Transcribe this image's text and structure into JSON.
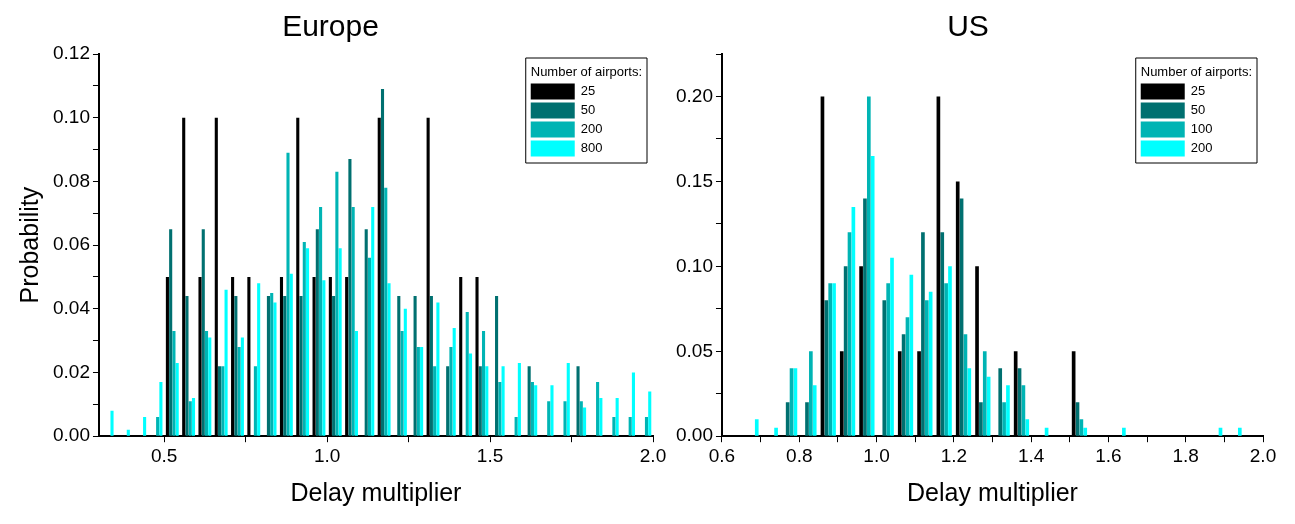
{
  "chart_data": [
    {
      "type": "bar",
      "title": "Europe",
      "xlabel": "Delay multiplier",
      "ylabel": "Probability",
      "legend_title": "Number of airports:",
      "legend": "top right",
      "x": [
        0.325,
        0.375,
        0.425,
        0.475,
        0.525,
        0.575,
        0.625,
        0.675,
        0.725,
        0.775,
        0.825,
        0.875,
        0.925,
        0.975,
        1.025,
        1.075,
        1.125,
        1.175,
        1.225,
        1.275,
        1.325,
        1.375,
        1.425,
        1.475,
        1.525,
        1.575,
        1.625,
        1.675,
        1.725,
        1.775,
        1.825,
        1.875,
        1.925,
        1.975
      ],
      "series": [
        {
          "name": "25",
          "color": "#000000",
          "values": [
            0,
            0,
            0,
            0,
            0.05,
            0.1,
            0.05,
            0.1,
            0.05,
            0.05,
            0,
            0.05,
            0.1,
            0.05,
            0.05,
            0.05,
            0,
            0.1,
            0,
            0,
            0.1,
            0,
            0.05,
            0.05,
            0,
            0,
            0,
            0,
            0,
            0,
            0,
            0,
            0,
            0
          ]
        },
        {
          "name": "50",
          "color": "#007070",
          "values": [
            0,
            0,
            0,
            0,
            0.065,
            0.044,
            0.065,
            0.022,
            0.044,
            0,
            0.044,
            0.044,
            0.044,
            0.065,
            0.044,
            0.087,
            0.065,
            0.109,
            0.044,
            0.044,
            0.044,
            0.022,
            0,
            0.022,
            0.044,
            0,
            0.022,
            0,
            0,
            0.022,
            0,
            0,
            0,
            0
          ]
        },
        {
          "name": "200",
          "color": "#00b4b4",
          "values": [
            0,
            0,
            0,
            0.006,
            0.033,
            0.011,
            0.033,
            0.022,
            0.028,
            0.022,
            0.045,
            0.089,
            0.061,
            0.072,
            0.083,
            0.072,
            0.056,
            0.078,
            0.033,
            0.028,
            0.022,
            0.028,
            0.039,
            0.033,
            0.017,
            0.006,
            0.017,
            0.011,
            0.011,
            0.011,
            0.017,
            0.006,
            0.006,
            0.006
          ]
        },
        {
          "name": "800",
          "color": "#00ffff",
          "values": [
            0.008,
            0.002,
            0.006,
            0.017,
            0.023,
            0.012,
            0.031,
            0.046,
            0.031,
            0.048,
            0.042,
            0.051,
            0.059,
            0.049,
            0.059,
            0.033,
            0.072,
            0.048,
            0.04,
            0.028,
            0.042,
            0.034,
            0.026,
            0.022,
            0.022,
            0.023,
            0.016,
            0.016,
            0.023,
            0.009,
            0.012,
            0.012,
            0.02,
            0.014
          ]
        }
      ],
      "xlim": [
        0.3,
        2.0
      ],
      "xticks": [
        {
          "value": 0.5,
          "label": "0.5"
        },
        {
          "value": 0.75,
          "label": null
        },
        {
          "value": 1.0,
          "label": "1.0"
        },
        {
          "value": 1.25,
          "label": null
        },
        {
          "value": 1.5,
          "label": "1.5"
        },
        {
          "value": 1.75,
          "label": null
        },
        {
          "value": 2.0,
          "label": "2.0"
        }
      ],
      "ylim": [
        0,
        0.12
      ],
      "yticks": [
        {
          "value": 0,
          "label": "0.00"
        },
        {
          "value": 0.01,
          "label": null
        },
        {
          "value": 0.02,
          "label": "0.02"
        },
        {
          "value": 0.03,
          "label": null
        },
        {
          "value": 0.04,
          "label": "0.04"
        },
        {
          "value": 0.05,
          "label": null
        },
        {
          "value": 0.06,
          "label": "0.06"
        },
        {
          "value": 0.07,
          "label": null
        },
        {
          "value": 0.08,
          "label": "0.08"
        },
        {
          "value": 0.09,
          "label": null
        },
        {
          "value": 0.1,
          "label": "0.10"
        },
        {
          "value": 0.11,
          "label": null
        },
        {
          "value": 0.12,
          "label": "0.12"
        }
      ]
    },
    {
      "type": "bar",
      "title": "US",
      "xlabel": "Delay multiplier",
      "legend_title": "Number of airports:",
      "legend": "top right",
      "x": [
        0.675,
        0.725,
        0.775,
        0.825,
        0.875,
        0.925,
        0.975,
        1.025,
        1.075,
        1.125,
        1.175,
        1.225,
        1.275,
        1.325,
        1.375,
        1.425,
        1.475,
        1.525,
        1.575,
        1.625,
        1.675,
        1.725,
        1.775,
        1.825,
        1.875,
        1.925
      ],
      "series": [
        {
          "name": "25",
          "color": "#000000",
          "values": [
            0,
            0,
            0,
            0,
            0.2,
            0.05,
            0.1,
            0,
            0.05,
            0.05,
            0.2,
            0.15,
            0.1,
            0,
            0.05,
            0,
            0,
            0.05,
            0,
            0,
            0,
            0,
            0,
            0,
            0,
            0
          ]
        },
        {
          "name": "50",
          "color": "#007070",
          "values": [
            0,
            0,
            0.02,
            0.02,
            0.08,
            0.1,
            0.14,
            0.08,
            0.06,
            0.12,
            0.12,
            0.14,
            0.02,
            0.04,
            0.04,
            0,
            0,
            0.02,
            0,
            0,
            0,
            0,
            0,
            0,
            0,
            0
          ]
        },
        {
          "name": "100",
          "color": "#00b4b4",
          "values": [
            0,
            0,
            0.04,
            0.05,
            0.09,
            0.12,
            0.2,
            0.09,
            0.07,
            0.08,
            0.09,
            0.06,
            0.05,
            0.02,
            0.03,
            0,
            0,
            0.01,
            0,
            0,
            0,
            0,
            0,
            0,
            0,
            0
          ]
        },
        {
          "name": "200",
          "color": "#00ffff",
          "values": [
            0.01,
            0.005,
            0.04,
            0.03,
            0.09,
            0.135,
            0.165,
            0.105,
            0.095,
            0.085,
            0.1,
            0.04,
            0.035,
            0.03,
            0.01,
            0.005,
            0,
            0.005,
            0,
            0.005,
            0,
            0,
            0,
            0,
            0.005,
            0.005
          ]
        }
      ],
      "xlim": [
        0.6,
        2.0
      ],
      "xticks": [
        {
          "value": 0.6,
          "label": "0.6"
        },
        {
          "value": 0.7,
          "label": null
        },
        {
          "value": 0.8,
          "label": "0.8"
        },
        {
          "value": 0.9,
          "label": null
        },
        {
          "value": 1.0,
          "label": "1.0"
        },
        {
          "value": 1.1,
          "label": null
        },
        {
          "value": 1.2,
          "label": "1.2"
        },
        {
          "value": 1.3,
          "label": null
        },
        {
          "value": 1.4,
          "label": "1.4"
        },
        {
          "value": 1.5,
          "label": null
        },
        {
          "value": 1.6,
          "label": "1.6"
        },
        {
          "value": 1.7,
          "label": null
        },
        {
          "value": 1.8,
          "label": "1.8"
        },
        {
          "value": 1.9,
          "label": null
        },
        {
          "value": 2.0,
          "label": "2.0"
        }
      ],
      "ylim": [
        0,
        0.225
      ],
      "yticks": [
        {
          "value": 0,
          "label": "0.00"
        },
        {
          "value": 0.025,
          "label": null
        },
        {
          "value": 0.05,
          "label": "0.05"
        },
        {
          "value": 0.075,
          "label": null
        },
        {
          "value": 0.1,
          "label": "0.10"
        },
        {
          "value": 0.125,
          "label": null
        },
        {
          "value": 0.15,
          "label": "0.15"
        },
        {
          "value": 0.175,
          "label": null
        },
        {
          "value": 0.2,
          "label": "0.20"
        },
        {
          "value": 0.225,
          "label": null
        }
      ]
    }
  ]
}
